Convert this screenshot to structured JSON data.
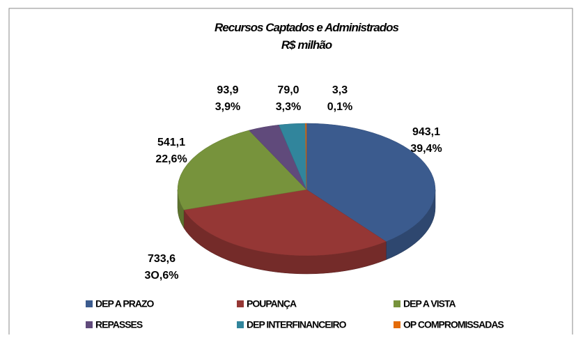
{
  "chart_data": {
    "type": "pie",
    "title": "Recursos Captados e Administrados",
    "subtitle": "R$ milhão",
    "categories": [
      "DEP A PRAZO",
      "POUPANÇA",
      "DEP A VISTA",
      "REPASSES",
      "DEP INTERFINANCEIRO",
      "OP COMPROMISSADAS"
    ],
    "values": [
      943.1,
      733.6,
      541.1,
      93.9,
      79.0,
      3.3
    ],
    "value_labels": [
      "943,1",
      "733,6",
      "541,1",
      "93,9",
      "79,0",
      "3,3"
    ],
    "percent_labels": [
      "39,4%",
      "3O,6%",
      "22,6%",
      "3,9%",
      "3,3%",
      "0,1%"
    ],
    "colors": [
      "#3b5b8e",
      "#953735",
      "#77933c",
      "#604a7b",
      "#31859c",
      "#e46c0a"
    ],
    "legend": "bottom"
  }
}
